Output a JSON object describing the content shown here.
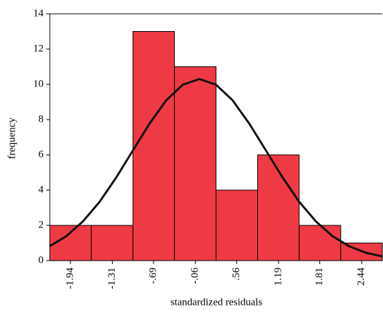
{
  "chart_data": {
    "type": "histogram",
    "x_label": "standardized residuals",
    "y_label": "frequency",
    "bins": [
      -2.25,
      -1.625,
      -1.0,
      -0.375,
      0.25,
      0.875,
      1.5,
      2.125,
      2.75
    ],
    "counts": [
      2,
      2,
      13,
      11,
      4,
      6,
      2,
      1
    ],
    "color": "#ee3a44",
    "edge_color": "#000000",
    "curve": {
      "color": "#111111",
      "x": [
        -2.25,
        -2.0,
        -1.75,
        -1.5,
        -1.25,
        -1.0,
        -0.75,
        -0.5,
        -0.25,
        0,
        0.25,
        0.5,
        0.75,
        1.0,
        1.25,
        1.5,
        1.75,
        2.0,
        2.25,
        2.5,
        2.75
      ],
      "values": [
        0.82,
        1.39,
        2.23,
        3.34,
        4.72,
        6.25,
        7.77,
        9.09,
        9.98,
        10.3,
        9.98,
        9.09,
        7.77,
        6.25,
        4.72,
        3.34,
        2.23,
        1.39,
        0.82,
        0.45,
        0.24
      ]
    },
    "xlim": [
      -2.25,
      2.75
    ],
    "xticks": [
      {
        "value": -1.94,
        "label": "-1.94"
      },
      {
        "value": -1.31,
        "label": "-1.31"
      },
      {
        "value": -0.69,
        "label": "-.69"
      },
      {
        "value": -0.06,
        "label": "-.06"
      },
      {
        "value": 0.56,
        "label": ".56"
      },
      {
        "value": 1.19,
        "label": "1.19"
      },
      {
        "value": 1.81,
        "label": "1.81"
      },
      {
        "value": 2.44,
        "label": "2.44"
      }
    ],
    "ylim": [
      0,
      14
    ],
    "yticks": [
      0,
      2,
      4,
      6,
      8,
      10,
      12,
      14
    ]
  }
}
